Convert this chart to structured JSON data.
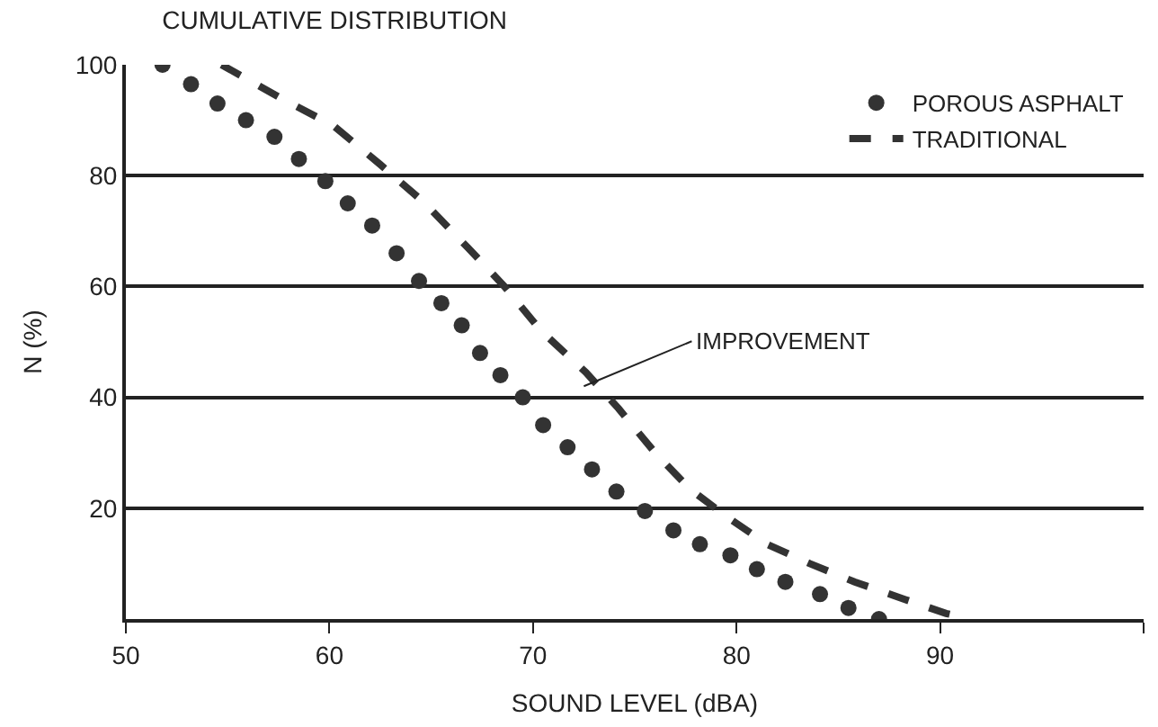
{
  "chart_data": {
    "type": "line",
    "title": "CUMULATIVE DISTRIBUTION",
    "xlabel": "SOUND LEVEL (dBA)",
    "ylabel": "N (%)",
    "series": [
      {
        "name": "POROUS ASPHALT",
        "type": "scatter",
        "marker": "circle",
        "color": "#333333",
        "x": [
          51.8,
          53.2,
          54.5,
          55.9,
          57.3,
          58.5,
          59.8,
          60.9,
          62.1,
          63.3,
          64.4,
          65.5,
          66.5,
          67.4,
          68.4,
          69.5,
          70.5,
          71.7,
          72.9,
          74.1,
          75.5,
          76.9,
          78.2,
          79.7,
          81,
          82.4,
          84.1,
          85.5,
          87
        ],
        "values": [
          100,
          96.5,
          93,
          90,
          87,
          83,
          79,
          75,
          71,
          66,
          61,
          57,
          53,
          48,
          44,
          40,
          35,
          31,
          27,
          23,
          19.5,
          16,
          13.5,
          11.5,
          9,
          6.7,
          4.5,
          2,
          0
        ]
      },
      {
        "name": "TRADITIONAL",
        "line_style": "dashed",
        "color": "#333333",
        "x": [
          54.7,
          57.6,
          60.2,
          62.5,
          64.7,
          66.8,
          68.6,
          70.4,
          72.6,
          74.2,
          76,
          77.7,
          79.5,
          81.5,
          83.6,
          85.8,
          88.3,
          90.3,
          91.5
        ],
        "values": [
          100,
          94,
          89,
          82,
          75,
          67,
          60,
          52,
          44.5,
          38,
          30,
          23.5,
          18.5,
          13.5,
          10,
          6.7,
          3.5,
          1,
          0
        ]
      }
    ],
    "annotations": [
      {
        "text": "IMPROVEMENT",
        "x": 72.5,
        "y": 42
      }
    ],
    "xlim": [
      50,
      100
    ],
    "xticks": [
      50,
      60,
      70,
      80,
      90,
      {
        "value": 100,
        "label": null
      }
    ],
    "ylim": [
      0,
      100
    ],
    "yticks": [
      {
        "value": 0,
        "label": null
      },
      20,
      40,
      60,
      80,
      100
    ],
    "grid": "y",
    "legend": "top right"
  }
}
